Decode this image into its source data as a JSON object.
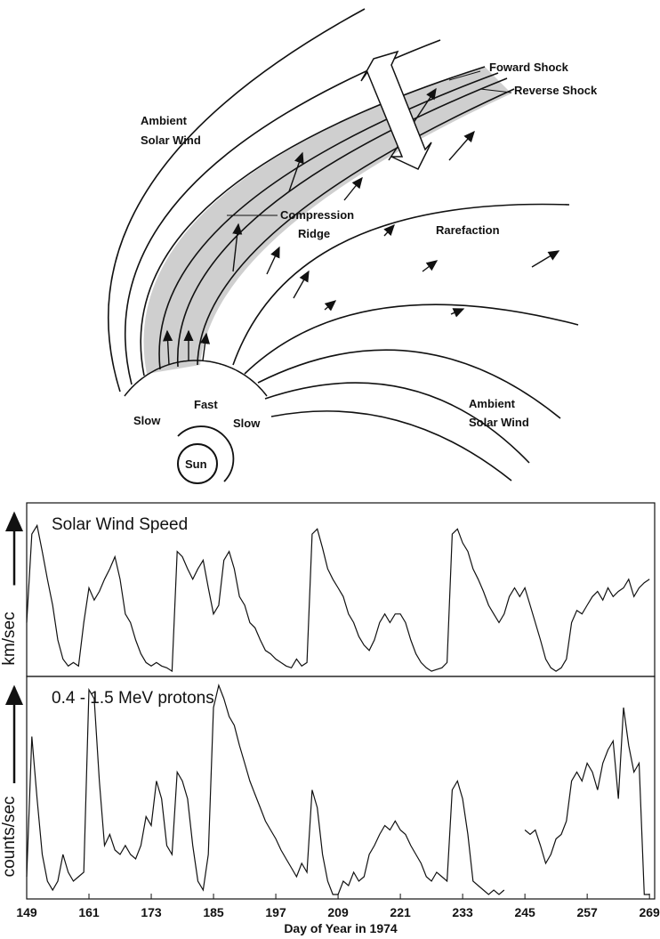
{
  "diagram": {
    "labels": {
      "forward_shock": "Foward Shock",
      "reverse_shock": "Reverse Shock",
      "ambient_top": [
        "Ambient",
        "Solar Wind"
      ],
      "compression": [
        "Compression",
        "Ridge"
      ],
      "rarefaction": "Rarefaction",
      "fast": "Fast",
      "slow_left": "Slow",
      "slow_right": "Slow",
      "sun": "Sun",
      "ambient_bottom": [
        "Ambient",
        "Solar Wind"
      ]
    }
  },
  "chart_data": [
    {
      "type": "line",
      "title": "Solar Wind Speed",
      "ylabel": "km/sec",
      "color": "#111111",
      "xlim": [
        149,
        270
      ],
      "ylim": [
        0,
        100
      ],
      "x": [
        149,
        150,
        151,
        152,
        153,
        154,
        155,
        156,
        157,
        158,
        159,
        160,
        161,
        162,
        163,
        164,
        165,
        166,
        167,
        168,
        169,
        170,
        171,
        172,
        173,
        174,
        175,
        176,
        177,
        178,
        179,
        180,
        181,
        182,
        183,
        184,
        185,
        186,
        187,
        188,
        189,
        190,
        191,
        192,
        193,
        194,
        195,
        196,
        197,
        198,
        199,
        200,
        201,
        202,
        203,
        204,
        205,
        206,
        207,
        208,
        209,
        210,
        211,
        212,
        213,
        214,
        215,
        216,
        217,
        218,
        219,
        220,
        221,
        222,
        223,
        224,
        225,
        226,
        227,
        228,
        229,
        230,
        231,
        232,
        233,
        234,
        235,
        236,
        237,
        238,
        239,
        240,
        241,
        242,
        243,
        244,
        245,
        246,
        247,
        248,
        249,
        250,
        251,
        252,
        253,
        254,
        255,
        256,
        257,
        258,
        259,
        260,
        261,
        262,
        263,
        264,
        265,
        266,
        267,
        268,
        269
      ],
      "values": [
        31,
        82,
        87,
        72,
        56,
        41,
        21,
        10,
        6,
        8,
        6,
        31,
        51,
        44,
        49,
        56,
        62,
        69,
        56,
        36,
        31,
        21,
        13,
        8,
        6,
        8,
        6,
        5,
        3,
        72,
        69,
        62,
        56,
        62,
        67,
        51,
        36,
        41,
        67,
        72,
        62,
        46,
        41,
        31,
        28,
        21,
        15,
        13,
        10,
        8,
        6,
        5,
        10,
        6,
        8,
        82,
        85,
        74,
        62,
        56,
        51,
        46,
        36,
        31,
        23,
        18,
        15,
        21,
        31,
        36,
        31,
        36,
        36,
        31,
        21,
        13,
        8,
        5,
        3,
        4,
        5,
        8,
        82,
        85,
        77,
        72,
        62,
        56,
        49,
        41,
        36,
        31,
        36,
        46,
        51,
        46,
        51,
        41,
        31,
        21,
        10,
        5,
        3,
        5,
        10,
        31,
        38,
        36,
        41,
        46,
        49,
        44,
        51,
        46,
        49,
        51,
        56,
        46,
        51,
        54,
        56
      ]
    },
    {
      "type": "line",
      "title": "0.4 - 1.5 MeV protons",
      "ylabel": "counts/sec",
      "xlabel": "Day of Year in 1974",
      "color": "#111111",
      "xlim": [
        149,
        270
      ],
      "ylim": [
        0,
        100
      ],
      "xticks": [
        149,
        161,
        173,
        185,
        197,
        209,
        221,
        233,
        245,
        257,
        269
      ],
      "x": [
        149,
        150,
        151,
        152,
        153,
        154,
        155,
        156,
        157,
        158,
        159,
        160,
        161,
        162,
        163,
        164,
        165,
        166,
        167,
        168,
        169,
        170,
        171,
        172,
        173,
        174,
        175,
        176,
        177,
        178,
        179,
        180,
        181,
        182,
        183,
        184,
        185,
        186,
        187,
        188,
        189,
        190,
        191,
        192,
        193,
        194,
        195,
        196,
        197,
        198,
        199,
        200,
        201,
        202,
        203,
        204,
        205,
        206,
        207,
        208,
        209,
        210,
        211,
        212,
        213,
        214,
        215,
        216,
        217,
        218,
        219,
        220,
        221,
        222,
        223,
        224,
        225,
        226,
        227,
        228,
        229,
        230,
        231,
        232,
        233,
        234,
        235,
        236,
        237,
        238,
        239,
        240,
        241,
        242,
        243,
        244,
        245,
        246,
        247,
        248,
        249,
        250,
        251,
        252,
        253,
        254,
        255,
        256,
        257,
        258,
        259,
        260,
        261,
        262,
        263,
        264,
        265,
        266,
        267,
        268,
        269
      ],
      "values": [
        10,
        73,
        45,
        20,
        8,
        4,
        8,
        20,
        12,
        8,
        10,
        12,
        94,
        90,
        53,
        24,
        29,
        22,
        20,
        24,
        20,
        18,
        24,
        37,
        33,
        53,
        45,
        24,
        20,
        57,
        53,
        45,
        24,
        8,
        4,
        20,
        86,
        96,
        90,
        82,
        78,
        69,
        61,
        53,
        47,
        41,
        35,
        31,
        27,
        22,
        18,
        14,
        10,
        16,
        12,
        49,
        41,
        20,
        8,
        2,
        2,
        8,
        6,
        12,
        8,
        10,
        20,
        24,
        29,
        33,
        31,
        35,
        31,
        29,
        24,
        20,
        16,
        10,
        8,
        12,
        10,
        8,
        49,
        53,
        45,
        29,
        8,
        6,
        4,
        2,
        4,
        2,
        4,
        null,
        null,
        null,
        31,
        29,
        31,
        24,
        16,
        20,
        27,
        29,
        35,
        53,
        57,
        53,
        61,
        57,
        49,
        61,
        67,
        71,
        45,
        86,
        69,
        57,
        61,
        2,
        2
      ]
    }
  ]
}
